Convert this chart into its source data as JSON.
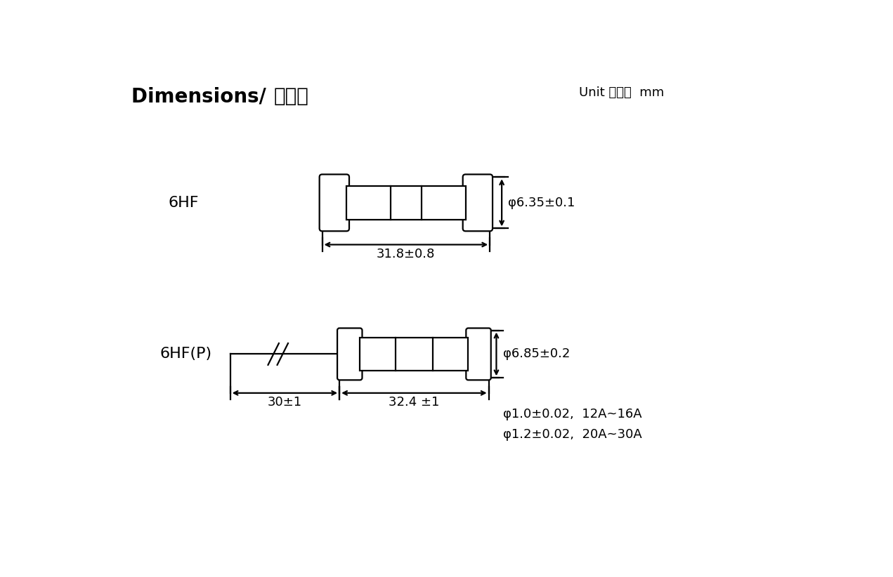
{
  "title": "Dimensions/ 尺寰：",
  "unit_text": "Unit 单位：  mm",
  "label_6hf": "6HF",
  "label_6hfp": "6HF(P)",
  "dim_6hf_length": "31.8±0.8",
  "dim_6hf_diameter": "φ6.35±0.1",
  "dim_6hfp_diameter": "φ6.85±0.2",
  "dim_6hfp_lead": "30±1",
  "dim_6hfp_body": "32.4 ±1",
  "dim_wire1": "φ1.0±0.02,  12A~16A",
  "dim_wire2": "φ1.2±0.02,  20A~30A",
  "bg_color": "#ffffff",
  "line_color": "#000000",
  "text_color": "#000000",
  "title_fontsize": 20,
  "label_fontsize": 16,
  "dim_fontsize": 13,
  "unit_fontsize": 13
}
